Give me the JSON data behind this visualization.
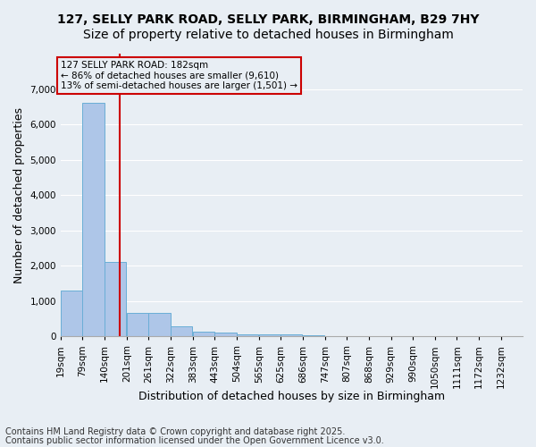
{
  "title_line1": "127, SELLY PARK ROAD, SELLY PARK, BIRMINGHAM, B29 7HY",
  "title_line2": "Size of property relative to detached houses in Birmingham",
  "xlabel": "Distribution of detached houses by size in Birmingham",
  "ylabel": "Number of detached properties",
  "bar_color": "#aec6e8",
  "bar_edge_color": "#6aaed6",
  "background_color": "#e8eef4",
  "grid_color": "#ffffff",
  "bin_labels": [
    "19sqm",
    "79sqm",
    "140sqm",
    "201sqm",
    "261sqm",
    "322sqm",
    "383sqm",
    "443sqm",
    "504sqm",
    "565sqm",
    "625sqm",
    "686sqm",
    "747sqm",
    "807sqm",
    "868sqm",
    "929sqm",
    "990sqm",
    "1050sqm",
    "1111sqm",
    "1172sqm",
    "1232sqm"
  ],
  "bin_edges": [
    19,
    79,
    140,
    201,
    261,
    322,
    383,
    443,
    504,
    565,
    625,
    686,
    747,
    807,
    868,
    929,
    990,
    1050,
    1111,
    1172,
    1232
  ],
  "bar_heights": [
    1300,
    6600,
    2100,
    680,
    680,
    300,
    150,
    100,
    50,
    50,
    50,
    30,
    20,
    15,
    10,
    8,
    5,
    4,
    3,
    2
  ],
  "property_size": 182,
  "vline_color": "#cc0000",
  "annotation_text": "127 SELLY PARK ROAD: 182sqm\n← 86% of detached houses are smaller (9,610)\n13% of semi-detached houses are larger (1,501) →",
  "ylim": [
    0,
    8000
  ],
  "yticks": [
    0,
    1000,
    2000,
    3000,
    4000,
    5000,
    6000,
    7000
  ],
  "footnote_line1": "Contains HM Land Registry data © Crown copyright and database right 2025.",
  "footnote_line2": "Contains public sector information licensed under the Open Government Licence v3.0.",
  "title_fontsize": 10,
  "label_fontsize": 9,
  "tick_fontsize": 7.5,
  "footnote_fontsize": 7
}
